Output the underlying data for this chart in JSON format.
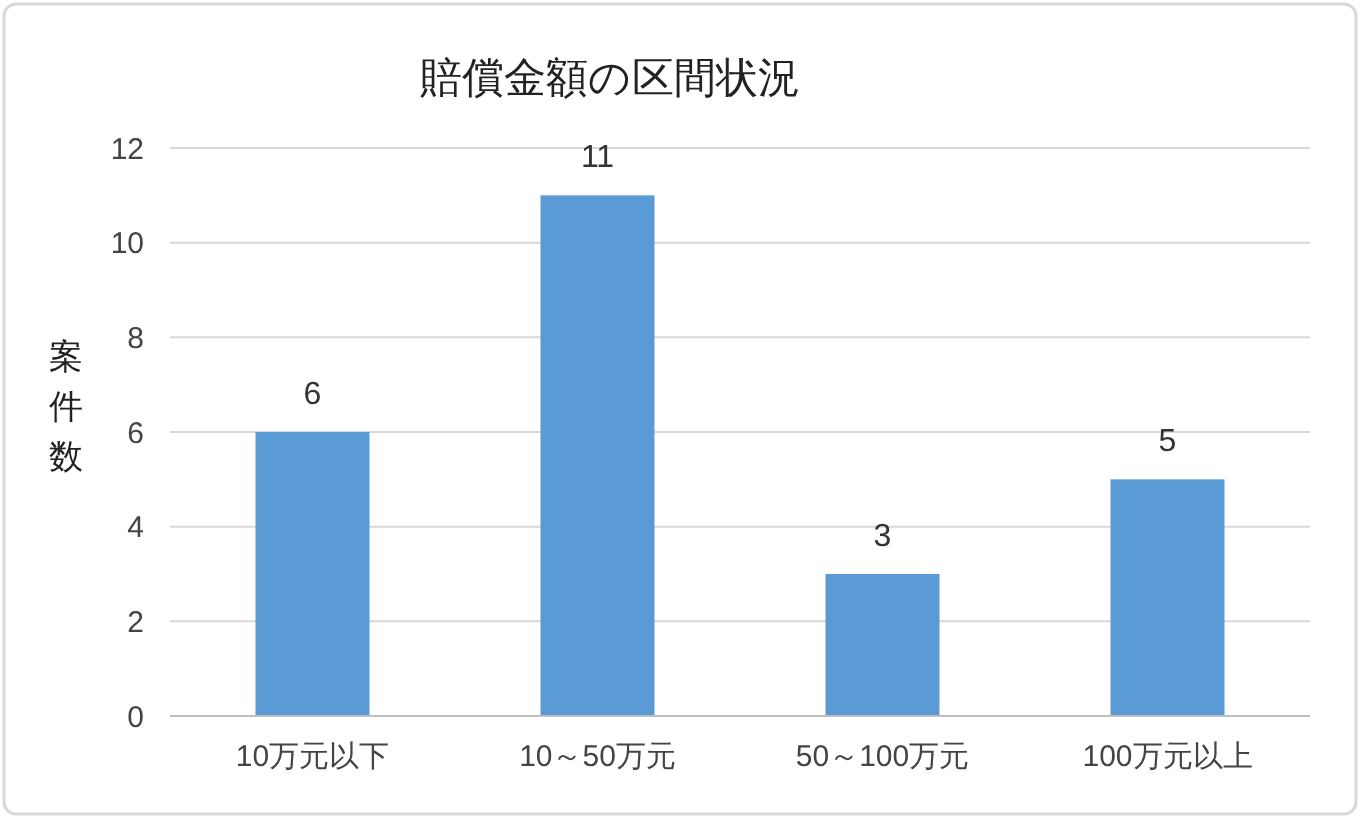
{
  "chart_data": {
    "type": "bar",
    "title": "賠償金額の区間状況",
    "ylabel": "案件数",
    "categories": [
      "10万元以下",
      "10～50万元",
      "50～100万元",
      "100万元以上"
    ],
    "values": [
      6,
      11,
      3,
      5
    ],
    "color": "#5b9bd5",
    "ylim": [
      0,
      12
    ],
    "yticks": [
      0,
      2,
      4,
      6,
      8,
      10,
      12
    ],
    "grid": "y",
    "data_labels": true
  }
}
